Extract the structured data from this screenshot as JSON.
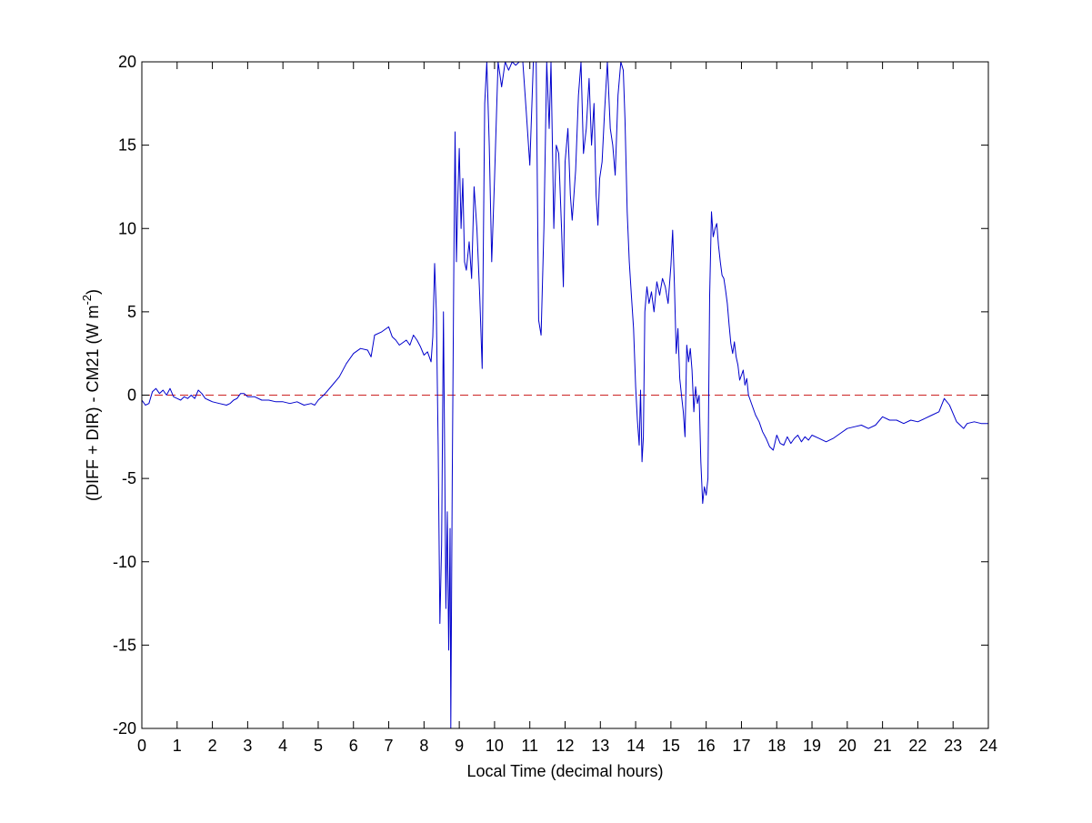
{
  "chart_data": {
    "type": "line",
    "title": "",
    "xlabel": "Local Time (decimal hours)",
    "ylabel": "(DIFF + DIR) - CM21 (W m",
    "ylabel_superscript": "-2",
    "ylabel_close": ")",
    "xlim": [
      0,
      24
    ],
    "ylim": [
      -20,
      20
    ],
    "xticks": [
      0,
      1,
      2,
      3,
      4,
      5,
      6,
      7,
      8,
      9,
      10,
      11,
      12,
      13,
      14,
      15,
      16,
      17,
      18,
      19,
      20,
      21,
      22,
      23,
      24
    ],
    "yticks": [
      -20,
      -15,
      -10,
      -5,
      0,
      5,
      10,
      15,
      20
    ],
    "grid": false,
    "colors": {
      "series": "#0000cc",
      "reference": "#cc2222",
      "axes": "#000000"
    },
    "reference_line": {
      "y": 0,
      "style": "dashed"
    },
    "series": [
      {
        "values": [
          [
            0.0,
            -0.3
          ],
          [
            0.1,
            -0.6
          ],
          [
            0.2,
            -0.5
          ],
          [
            0.3,
            0.2
          ],
          [
            0.4,
            0.4
          ],
          [
            0.5,
            0.1
          ],
          [
            0.6,
            0.3
          ],
          [
            0.7,
            0.0
          ],
          [
            0.8,
            0.4
          ],
          [
            0.9,
            -0.1
          ],
          [
            1.0,
            -0.2
          ],
          [
            1.1,
            -0.3
          ],
          [
            1.2,
            -0.1
          ],
          [
            1.3,
            -0.2
          ],
          [
            1.4,
            0.0
          ],
          [
            1.5,
            -0.2
          ],
          [
            1.6,
            0.3
          ],
          [
            1.7,
            0.1
          ],
          [
            1.8,
            -0.2
          ],
          [
            1.9,
            -0.3
          ],
          [
            2.0,
            -0.4
          ],
          [
            2.2,
            -0.5
          ],
          [
            2.4,
            -0.6
          ],
          [
            2.5,
            -0.5
          ],
          [
            2.6,
            -0.3
          ],
          [
            2.7,
            -0.2
          ],
          [
            2.8,
            0.1
          ],
          [
            2.9,
            0.1
          ],
          [
            3.0,
            -0.1
          ],
          [
            3.2,
            -0.1
          ],
          [
            3.4,
            -0.3
          ],
          [
            3.6,
            -0.3
          ],
          [
            3.8,
            -0.4
          ],
          [
            4.0,
            -0.4
          ],
          [
            4.2,
            -0.5
          ],
          [
            4.4,
            -0.4
          ],
          [
            4.6,
            -0.6
          ],
          [
            4.8,
            -0.5
          ],
          [
            4.9,
            -0.6
          ],
          [
            5.0,
            -0.3
          ],
          [
            5.2,
            0.1
          ],
          [
            5.4,
            0.6
          ],
          [
            5.6,
            1.1
          ],
          [
            5.8,
            1.9
          ],
          [
            6.0,
            2.5
          ],
          [
            6.2,
            2.8
          ],
          [
            6.4,
            2.7
          ],
          [
            6.5,
            2.3
          ],
          [
            6.6,
            3.6
          ],
          [
            6.8,
            3.8
          ],
          [
            7.0,
            4.1
          ],
          [
            7.1,
            3.5
          ],
          [
            7.2,
            3.3
          ],
          [
            7.3,
            3.0
          ],
          [
            7.5,
            3.3
          ],
          [
            7.6,
            3.0
          ],
          [
            7.7,
            3.6
          ],
          [
            7.8,
            3.3
          ],
          [
            7.9,
            2.9
          ],
          [
            8.0,
            2.4
          ],
          [
            8.1,
            2.6
          ],
          [
            8.2,
            2.0
          ],
          [
            8.25,
            3.5
          ],
          [
            8.3,
            7.9
          ],
          [
            8.35,
            5.0
          ],
          [
            8.4,
            -3.0
          ],
          [
            8.45,
            -13.7
          ],
          [
            8.5,
            -9.0
          ],
          [
            8.55,
            5.0
          ],
          [
            8.58,
            -2.0
          ],
          [
            8.62,
            -12.8
          ],
          [
            8.66,
            -7.0
          ],
          [
            8.7,
            -15.3
          ],
          [
            8.74,
            -8.0
          ],
          [
            8.76,
            -20.0
          ],
          [
            8.8,
            -5.0
          ],
          [
            8.85,
            9.0
          ],
          [
            8.88,
            15.8
          ],
          [
            8.92,
            8.0
          ],
          [
            8.96,
            12.0
          ],
          [
            9.0,
            14.8
          ],
          [
            9.05,
            10.0
          ],
          [
            9.1,
            13.0
          ],
          [
            9.15,
            8.0
          ],
          [
            9.2,
            7.5
          ],
          [
            9.28,
            9.2
          ],
          [
            9.35,
            7.0
          ],
          [
            9.42,
            12.5
          ],
          [
            9.5,
            10.0
          ],
          [
            9.58,
            6.0
          ],
          [
            9.65,
            1.6
          ],
          [
            9.72,
            17.5
          ],
          [
            9.78,
            20.0
          ],
          [
            9.85,
            15.0
          ],
          [
            9.92,
            8.0
          ],
          [
            10.0,
            13.0
          ],
          [
            10.1,
            20.0
          ],
          [
            10.2,
            18.5
          ],
          [
            10.3,
            20.0
          ],
          [
            10.4,
            19.5
          ],
          [
            10.5,
            20.0
          ],
          [
            10.6,
            19.8
          ],
          [
            10.7,
            20.0
          ],
          [
            10.8,
            20.0
          ],
          [
            10.9,
            17.0
          ],
          [
            11.0,
            13.8
          ],
          [
            11.1,
            20.0
          ],
          [
            11.18,
            20.0
          ],
          [
            11.25,
            4.5
          ],
          [
            11.32,
            3.6
          ],
          [
            11.4,
            10.0
          ],
          [
            11.48,
            20.0
          ],
          [
            11.55,
            16.0
          ],
          [
            11.6,
            20.0
          ],
          [
            11.68,
            10.0
          ],
          [
            11.75,
            15.0
          ],
          [
            11.82,
            14.5
          ],
          [
            11.9,
            10.0
          ],
          [
            11.95,
            6.5
          ],
          [
            12.0,
            14.0
          ],
          [
            12.08,
            16.0
          ],
          [
            12.15,
            12.0
          ],
          [
            12.2,
            10.5
          ],
          [
            12.3,
            13.5
          ],
          [
            12.38,
            18.0
          ],
          [
            12.45,
            20.0
          ],
          [
            12.52,
            14.5
          ],
          [
            12.6,
            16.0
          ],
          [
            12.68,
            19.0
          ],
          [
            12.75,
            15.0
          ],
          [
            12.82,
            17.5
          ],
          [
            12.88,
            12.0
          ],
          [
            12.93,
            10.2
          ],
          [
            12.98,
            13.0
          ],
          [
            13.05,
            14.0
          ],
          [
            13.12,
            17.0
          ],
          [
            13.2,
            20.0
          ],
          [
            13.28,
            16.0
          ],
          [
            13.35,
            15.0
          ],
          [
            13.42,
            13.2
          ],
          [
            13.5,
            18.0
          ],
          [
            13.58,
            20.0
          ],
          [
            13.65,
            19.5
          ],
          [
            13.7,
            16.5
          ],
          [
            13.76,
            11.0
          ],
          [
            13.82,
            8.0
          ],
          [
            13.88,
            6.0
          ],
          [
            13.94,
            4.0
          ],
          [
            14.0,
            0.5
          ],
          [
            14.05,
            -1.5
          ],
          [
            14.1,
            -3.0
          ],
          [
            14.14,
            0.3
          ],
          [
            14.18,
            -4.0
          ],
          [
            14.22,
            -2.5
          ],
          [
            14.26,
            5.0
          ],
          [
            14.32,
            6.5
          ],
          [
            14.38,
            5.5
          ],
          [
            14.45,
            6.2
          ],
          [
            14.52,
            5.0
          ],
          [
            14.6,
            6.8
          ],
          [
            14.68,
            6.0
          ],
          [
            14.76,
            7.0
          ],
          [
            14.84,
            6.5
          ],
          [
            14.92,
            5.5
          ],
          [
            15.0,
            7.8
          ],
          [
            15.05,
            9.9
          ],
          [
            15.1,
            6.5
          ],
          [
            15.15,
            2.5
          ],
          [
            15.2,
            4.0
          ],
          [
            15.25,
            1.0
          ],
          [
            15.3,
            0.0
          ],
          [
            15.35,
            -1.0
          ],
          [
            15.4,
            -2.5
          ],
          [
            15.45,
            3.0
          ],
          [
            15.5,
            2.0
          ],
          [
            15.55,
            2.8
          ],
          [
            15.6,
            1.5
          ],
          [
            15.65,
            -1.0
          ],
          [
            15.7,
            0.5
          ],
          [
            15.75,
            -0.5
          ],
          [
            15.8,
            0.0
          ],
          [
            15.85,
            -4.0
          ],
          [
            15.9,
            -6.5
          ],
          [
            15.95,
            -5.5
          ],
          [
            16.0,
            -6.0
          ],
          [
            16.05,
            -5.0
          ],
          [
            16.1,
            6.0
          ],
          [
            16.15,
            11.0
          ],
          [
            16.2,
            9.5
          ],
          [
            16.25,
            10.0
          ],
          [
            16.3,
            10.3
          ],
          [
            16.35,
            9.0
          ],
          [
            16.4,
            8.0
          ],
          [
            16.45,
            7.2
          ],
          [
            16.5,
            7.0
          ],
          [
            16.55,
            6.3
          ],
          [
            16.6,
            5.5
          ],
          [
            16.65,
            4.2
          ],
          [
            16.7,
            3.1
          ],
          [
            16.75,
            2.5
          ],
          [
            16.8,
            3.2
          ],
          [
            16.85,
            2.3
          ],
          [
            16.9,
            1.8
          ],
          [
            16.95,
            0.9
          ],
          [
            17.0,
            1.2
          ],
          [
            17.05,
            1.5
          ],
          [
            17.1,
            0.6
          ],
          [
            17.15,
            1.0
          ],
          [
            17.2,
            0.0
          ],
          [
            17.3,
            -0.6
          ],
          [
            17.4,
            -1.2
          ],
          [
            17.5,
            -1.6
          ],
          [
            17.6,
            -2.2
          ],
          [
            17.7,
            -2.6
          ],
          [
            17.8,
            -3.1
          ],
          [
            17.9,
            -3.3
          ],
          [
            18.0,
            -2.4
          ],
          [
            18.1,
            -2.9
          ],
          [
            18.2,
            -3.0
          ],
          [
            18.3,
            -2.5
          ],
          [
            18.4,
            -2.9
          ],
          [
            18.5,
            -2.6
          ],
          [
            18.6,
            -2.4
          ],
          [
            18.7,
            -2.8
          ],
          [
            18.8,
            -2.5
          ],
          [
            18.9,
            -2.7
          ],
          [
            19.0,
            -2.4
          ],
          [
            19.2,
            -2.6
          ],
          [
            19.4,
            -2.8
          ],
          [
            19.6,
            -2.6
          ],
          [
            19.8,
            -2.3
          ],
          [
            20.0,
            -2.0
          ],
          [
            20.2,
            -1.9
          ],
          [
            20.4,
            -1.8
          ],
          [
            20.6,
            -2.0
          ],
          [
            20.8,
            -1.8
          ],
          [
            21.0,
            -1.3
          ],
          [
            21.2,
            -1.5
          ],
          [
            21.4,
            -1.5
          ],
          [
            21.6,
            -1.7
          ],
          [
            21.8,
            -1.5
          ],
          [
            22.0,
            -1.6
          ],
          [
            22.2,
            -1.4
          ],
          [
            22.4,
            -1.2
          ],
          [
            22.6,
            -1.0
          ],
          [
            22.75,
            -0.2
          ],
          [
            22.9,
            -0.6
          ],
          [
            23.0,
            -1.1
          ],
          [
            23.1,
            -1.6
          ],
          [
            23.2,
            -1.8
          ],
          [
            23.3,
            -2.0
          ],
          [
            23.4,
            -1.7
          ],
          [
            23.6,
            -1.6
          ],
          [
            23.8,
            -1.7
          ],
          [
            24.0,
            -1.7
          ]
        ]
      }
    ]
  }
}
